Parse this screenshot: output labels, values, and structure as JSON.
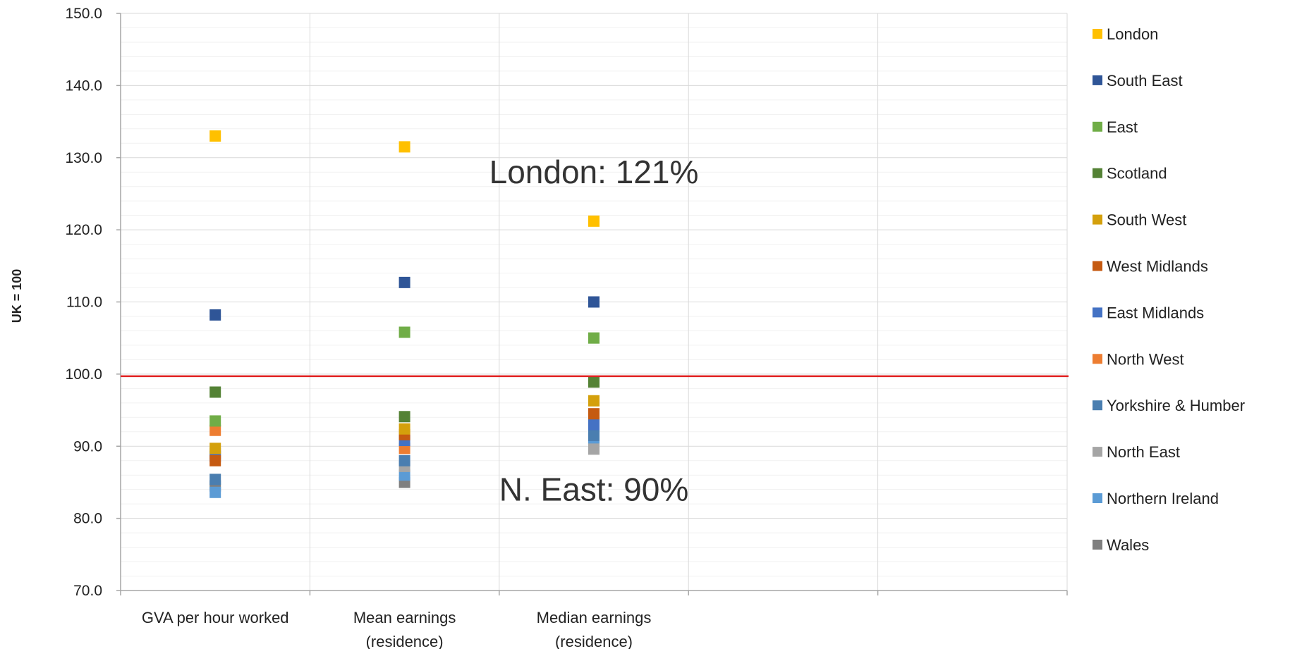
{
  "chart_data": {
    "type": "scatter",
    "title": "",
    "xlabel": "",
    "ylabel": "UK = 100",
    "ylim": [
      70,
      150
    ],
    "y_ticks": [
      "70.0",
      "80.0",
      "90.0",
      "100.0",
      "110.0",
      "120.0",
      "130.0",
      "140.0",
      "150.0"
    ],
    "categories": [
      "GVA per hour worked",
      "Mean earnings (residence)",
      "Median earnings (residence)",
      "",
      ""
    ],
    "category_lines": [
      [
        "GVA per hour worked"
      ],
      [
        "Mean earnings",
        "(residence)"
      ],
      [
        "Median earnings",
        "(residence)"
      ],
      [
        ""
      ],
      [
        ""
      ]
    ],
    "grid": true,
    "legend_position": "right",
    "reference_line": {
      "value": 100,
      "color": "#e02020"
    },
    "annotations": [
      {
        "text": "London: 121%",
        "x": 2.5,
        "y": 128
      },
      {
        "text": "N. East: 90%",
        "x": 2.5,
        "y": 84
      }
    ],
    "series": [
      {
        "name": "London",
        "color": "#FFC000",
        "values": [
          133.0,
          131.5,
          121.2
        ]
      },
      {
        "name": "South East",
        "color": "#2F5597",
        "values": [
          108.2,
          112.7,
          110.0
        ]
      },
      {
        "name": "East",
        "color": "#70AD47",
        "values": [
          93.5,
          105.8,
          105.0
        ]
      },
      {
        "name": "Scotland",
        "color": "#548235",
        "values": [
          97.5,
          94.1,
          98.9
        ]
      },
      {
        "name": "South West",
        "color": "#D4A00C",
        "values": [
          89.7,
          92.4,
          96.3
        ]
      },
      {
        "name": "West Midlands",
        "color": "#C55A11",
        "values": [
          88.0,
          91.6,
          94.5
        ]
      },
      {
        "name": "East Midlands",
        "color": "#4472C4",
        "values": [
          88.6,
          90.8,
          93.0
        ]
      },
      {
        "name": "North West",
        "color": "#ED7D31",
        "values": [
          92.2,
          89.7,
          93.8
        ]
      },
      {
        "name": "Yorkshire & Humber",
        "color": "#4A7EB0",
        "values": [
          85.4,
          88.0,
          91.5
        ]
      },
      {
        "name": "North East",
        "color": "#A5A5A5",
        "values": [
          89.0,
          87.2,
          89.6
        ]
      },
      {
        "name": "Northern Ireland",
        "color": "#5B9BD5",
        "values": [
          83.6,
          86.0,
          90.5
        ]
      },
      {
        "name": "Wales",
        "color": "#7F7F7F",
        "values": [
          84.5,
          85.0,
          92.1
        ]
      }
    ]
  }
}
